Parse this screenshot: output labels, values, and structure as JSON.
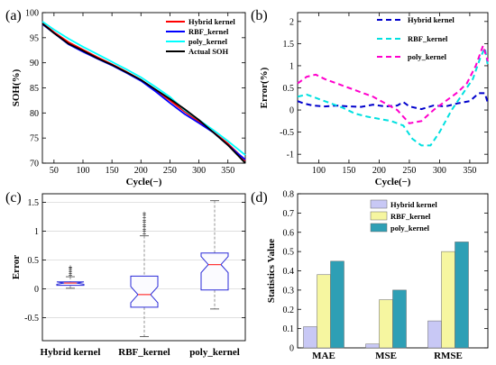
{
  "panels": {
    "a": "(a)",
    "b": "(b)",
    "c": "(c)",
    "d": "(d)"
  },
  "chart_data": [
    {
      "id": "a",
      "type": "line",
      "xlabel": "Cycle(−)",
      "ylabel": "SOH(%)",
      "xlim": [
        30,
        380
      ],
      "ylim": [
        70,
        100
      ],
      "xticks": [
        50,
        100,
        150,
        200,
        250,
        300,
        350
      ],
      "yticks": [
        70,
        75,
        80,
        85,
        90,
        95,
        100
      ],
      "grid": false,
      "legend": "top-right",
      "series": [
        {
          "name": "Hybrid kernel",
          "color": "#ff0000",
          "x": [
            30,
            50,
            75,
            100,
            125,
            150,
            175,
            200,
            225,
            250,
            275,
            300,
            325,
            350,
            365,
            380
          ],
          "y": [
            97.9,
            96.1,
            94.1,
            92.6,
            91.1,
            89.7,
            88.2,
            86.6,
            84.6,
            82.5,
            80.3,
            78.3,
            76.2,
            73.9,
            72.2,
            70.5
          ]
        },
        {
          "name": "RBF_kernel",
          "color": "#0000ff",
          "x": [
            30,
            50,
            75,
            100,
            125,
            150,
            175,
            200,
            225,
            250,
            275,
            300,
            325,
            350,
            365,
            380
          ],
          "y": [
            97.7,
            95.9,
            93.7,
            92.2,
            90.8,
            89.5,
            88.0,
            86.4,
            84.3,
            82.0,
            79.8,
            78.0,
            76.1,
            73.6,
            72.1,
            70.7
          ]
        },
        {
          "name": "poly_kernel",
          "color": "#00ffff",
          "x": [
            30,
            50,
            75,
            100,
            125,
            150,
            175,
            200,
            225,
            250,
            275,
            300,
            325,
            350,
            365,
            380
          ],
          "y": [
            98.2,
            96.6,
            94.8,
            93.2,
            91.7,
            90.2,
            88.7,
            87.1,
            85.2,
            83.2,
            80.6,
            78.6,
            76.6,
            74.4,
            73.0,
            71.6
          ]
        },
        {
          "name": "Actual SOH",
          "color": "#000000",
          "x": [
            30,
            50,
            75,
            100,
            125,
            150,
            175,
            200,
            225,
            250,
            275,
            300,
            325,
            350,
            365,
            380
          ],
          "y": [
            97.8,
            95.9,
            93.8,
            92.4,
            90.9,
            89.6,
            88.1,
            86.6,
            84.7,
            82.8,
            80.8,
            78.6,
            76.1,
            73.6,
            71.8,
            70.0
          ]
        }
      ]
    },
    {
      "id": "b",
      "type": "line",
      "xlabel": "Cycle(−)",
      "ylabel": "Error(%)",
      "xlim": [
        65,
        380
      ],
      "ylim": [
        -1.2,
        2.2
      ],
      "xticks": [
        100,
        150,
        200,
        250,
        300,
        350
      ],
      "yticks": [
        -1,
        -0.5,
        0,
        0.5,
        1,
        1.5,
        2
      ],
      "grid": false,
      "legend": "top-right",
      "series": [
        {
          "name": "Hybrid kernel",
          "color": "#0000cc",
          "x": [
            65,
            75,
            90,
            110,
            130,
            150,
            170,
            190,
            210,
            230,
            240,
            250,
            270,
            290,
            310,
            330,
            350,
            365,
            375,
            380
          ],
          "y": [
            0.2,
            0.15,
            0.1,
            0.08,
            0.1,
            0.08,
            0.07,
            0.12,
            0.08,
            0.1,
            0.18,
            0.08,
            0.02,
            0.1,
            0.08,
            0.15,
            0.2,
            0.38,
            0.38,
            0.15
          ]
        },
        {
          "name": "RBF_kernel",
          "color": "#00e0e0",
          "x": [
            65,
            80,
            100,
            120,
            140,
            160,
            180,
            200,
            220,
            240,
            255,
            270,
            285,
            300,
            320,
            340,
            355,
            368,
            375,
            380
          ],
          "y": [
            0.3,
            0.35,
            0.25,
            0.15,
            0.05,
            -0.08,
            -0.15,
            -0.2,
            -0.25,
            -0.35,
            -0.65,
            -0.8,
            -0.8,
            -0.5,
            0.0,
            0.4,
            0.7,
            1.2,
            1.4,
            1.0
          ]
        },
        {
          "name": "poly_kernel",
          "color": "#ff00cc",
          "x": [
            65,
            80,
            95,
            110,
            130,
            150,
            170,
            190,
            210,
            230,
            250,
            270,
            290,
            310,
            330,
            345,
            360,
            372,
            380
          ],
          "y": [
            0.6,
            0.75,
            0.8,
            0.7,
            0.6,
            0.5,
            0.4,
            0.3,
            0.15,
            0.0,
            -0.3,
            -0.25,
            0.0,
            0.2,
            0.4,
            0.6,
            1.0,
            1.45,
            1.1
          ]
        }
      ]
    },
    {
      "id": "c",
      "type": "box",
      "xlabel": "",
      "ylabel": "Error",
      "ylim": [
        -0.9,
        1.65
      ],
      "yticks": [
        -0.5,
        0,
        0.5,
        1,
        1.5
      ],
      "categories": [
        "Hybrid kernel",
        "RBF_kernel",
        "poly_kernel"
      ],
      "grid": true,
      "boxes": [
        {
          "q1": 0.06,
          "median": 0.1,
          "q3": 0.12,
          "whisker_low": 0.01,
          "whisker_high": 0.21,
          "outliers": [
            0.24,
            0.27,
            0.3,
            0.33,
            0.36,
            0.38
          ]
        },
        {
          "q1": -0.32,
          "median": -0.1,
          "q3": 0.22,
          "whisker_low": -0.83,
          "whisker_high": 0.92,
          "outliers": [
            0.96,
            1.0,
            1.04,
            1.08,
            1.12,
            1.16,
            1.2,
            1.24,
            1.28,
            1.31
          ]
        },
        {
          "q1": -0.02,
          "median": 0.42,
          "q3": 0.62,
          "whisker_low": -0.35,
          "whisker_high": 1.53,
          "outliers": []
        }
      ]
    },
    {
      "id": "d",
      "type": "bar",
      "ylabel": "Statistics Value",
      "ylim": [
        0,
        0.8
      ],
      "yticks": [
        0,
        0.1,
        0.2,
        0.3,
        0.4,
        0.5,
        0.6,
        0.7,
        0.8
      ],
      "categories": [
        "MAE",
        "MSE",
        "RMSE"
      ],
      "grid": false,
      "legend": "top-left",
      "series": [
        {
          "name": "Hybrid kernel",
          "color": "#c8c8f5",
          "values": [
            0.11,
            0.02,
            0.14
          ]
        },
        {
          "name": "RBF_kernel",
          "color": "#f6f6a0",
          "values": [
            0.38,
            0.25,
            0.5
          ]
        },
        {
          "name": "poly_kernel",
          "color": "#2e9fb5",
          "values": [
            0.45,
            0.3,
            0.55
          ]
        }
      ]
    }
  ]
}
